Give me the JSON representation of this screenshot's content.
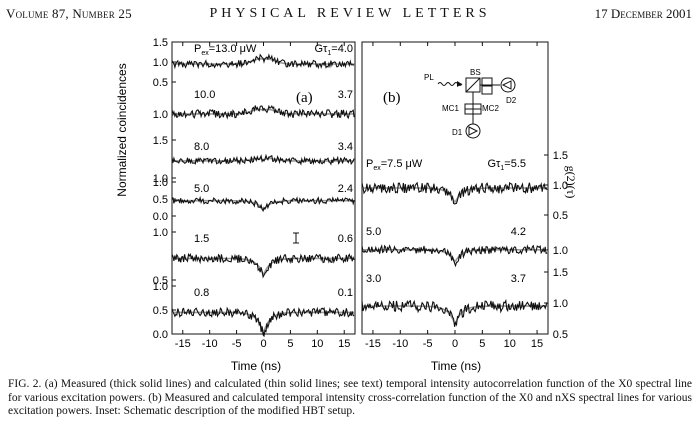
{
  "header": {
    "left": "Volume 87, Number 25",
    "center": "PHYSICAL REVIEW LETTERS",
    "right": "17 December 2001"
  },
  "figure": {
    "panel_a_label": "(a)",
    "panel_b_label": "(b)",
    "y_label": "Normalized coincidences",
    "x_label": "Time (ns)",
    "right_y_label": "g(2)(τ)",
    "inset": {
      "pl": "PL",
      "bs": "BS",
      "mc1": "MC1",
      "mc2": "MC2",
      "d1": "D1",
      "d2": "D2"
    }
  },
  "chart_data": [
    {
      "type": "line",
      "panel": "(a)",
      "xlabel": "Time (ns)",
      "ylabel": "Normalized coincidences",
      "xlim": [
        -17,
        17
      ],
      "x_ticks": [
        -15,
        -10,
        -5,
        0,
        5,
        10,
        15
      ],
      "traces": [
        {
          "left_label": "P",
          "left_sub": "ex",
          "left_value": "=13.0 μW",
          "right_prefix": "Gτ",
          "right_sub": "1",
          "right_value": "=4.0",
          "ticks": [
            "1.5",
            "1.0",
            "0.5"
          ],
          "dip": -0.05,
          "peak": 0.35
        },
        {
          "left_value": "10.0",
          "right_value": "3.7",
          "ticks": [
            "1.0"
          ],
          "dip": -0.1,
          "peak": 0.3
        },
        {
          "left_value": "8.0",
          "right_value": "3.4",
          "ticks": [
            "1.5",
            "1.0"
          ],
          "dip": -0.15,
          "peak": 0.25
        },
        {
          "left_value": "5.0",
          "right_value": "2.4",
          "ticks": [
            "1.0",
            "0.5",
            "0.0"
          ],
          "dip": -0.55,
          "peak": 0.0
        },
        {
          "left_value": "1.5",
          "right_value": "0.6",
          "ticks": [
            "1.0",
            "0.5"
          ],
          "dip": -0.7,
          "peak": 0.0
        },
        {
          "left_value": "0.8",
          "right_value": "0.1",
          "ticks": [
            "1.0",
            "0.5",
            "0.0"
          ],
          "dip": -0.85,
          "peak": 0.0
        }
      ]
    },
    {
      "type": "line",
      "panel": "(b)",
      "xlabel": "Time (ns)",
      "ylabel": "g(2)(τ)",
      "xlim": [
        -17,
        17
      ],
      "x_ticks": [
        -15,
        -10,
        -5,
        0,
        5,
        10,
        15
      ],
      "traces": [
        {
          "left_label": "P",
          "left_sub": "ex",
          "left_value": "=7.5 μW",
          "right_prefix": "Gτ",
          "right_sub": "1",
          "right_value": "=5.5",
          "ticks": [
            "1.5",
            "1.0",
            "0.5"
          ],
          "dip": -0.5
        },
        {
          "left_value": "5.0",
          "right_value": "4.2",
          "ticks": [
            "1.0"
          ],
          "dip": -0.55
        },
        {
          "left_value": "3.0",
          "right_value": "3.7",
          "ticks": [
            "1.5",
            "1.0",
            "0.5"
          ],
          "dip": -0.6
        }
      ]
    }
  ],
  "caption": {
    "fig": "FIG. 2.",
    "text": "(a) Measured (thick solid lines) and calculated (thin solid lines; see text) temporal intensity autocorrelation function of the X0 spectral line for various excitation powers. (b) Measured and calculated temporal intensity cross-correlation function of the X0 and nXS spectral lines for various excitation powers. Inset: Schematic description of the modified HBT setup."
  }
}
